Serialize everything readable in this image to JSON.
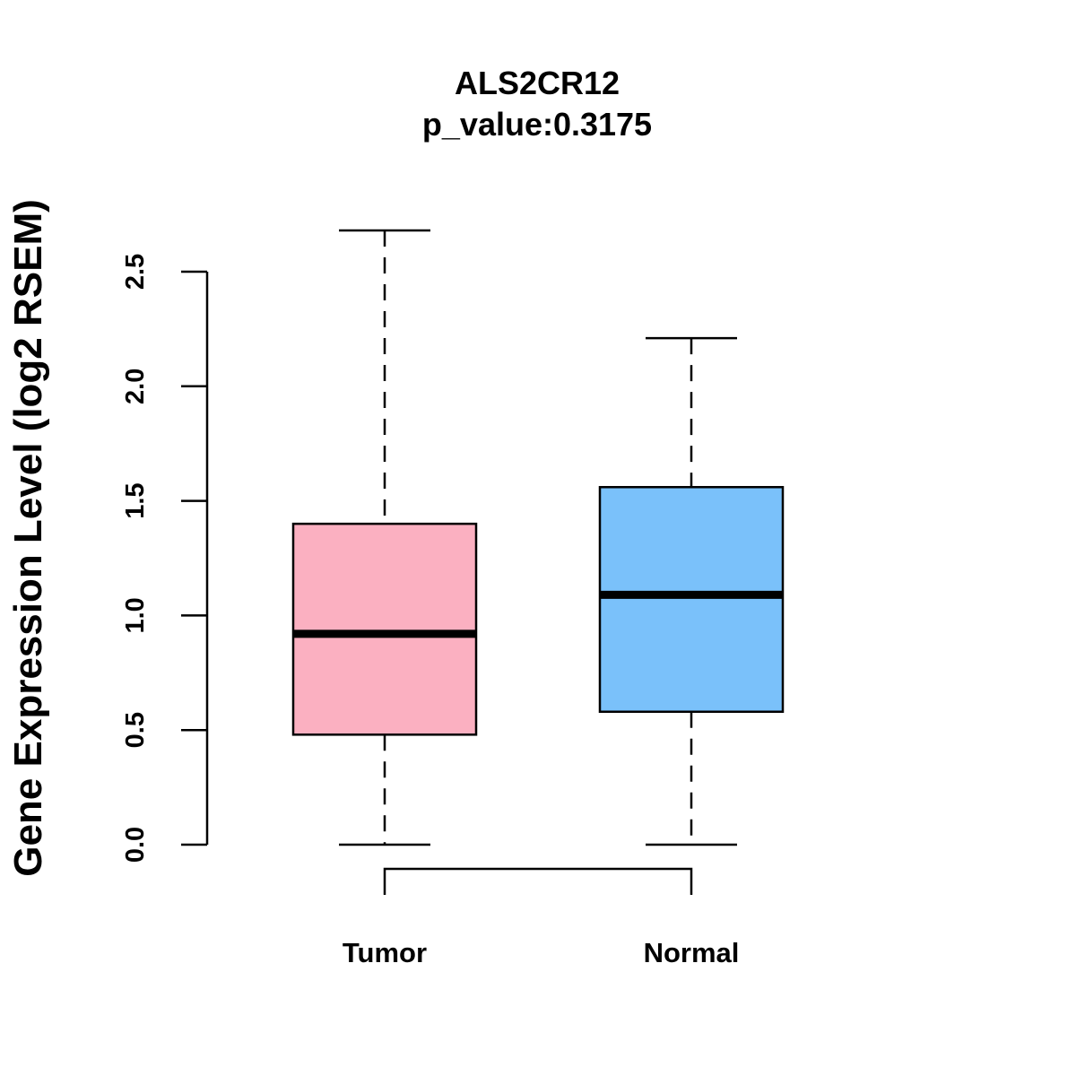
{
  "chart_data": {
    "type": "box",
    "title": "ALS2CR12",
    "subtitle": "p_value:0.3175",
    "xlabel": "",
    "ylabel": "Gene Expression Level (log2 RSEM)",
    "ylim": [
      0,
      2.5
    ],
    "yticks": [
      "0.0",
      "0.5",
      "1.0",
      "1.5",
      "2.0",
      "2.5"
    ],
    "categories": [
      "Tumor",
      "Normal"
    ],
    "series": [
      {
        "name": "Tumor",
        "color": "#FBB0C1",
        "min": 0.0,
        "q1": 0.48,
        "median": 0.92,
        "q3": 1.4,
        "max": 2.68
      },
      {
        "name": "Normal",
        "color": "#7AC1FA",
        "min": 0.0,
        "q1": 0.58,
        "median": 1.09,
        "q3": 1.56,
        "max": 2.21
      }
    ],
    "comparison_bracket": {
      "from": "Tumor",
      "to": "Normal"
    }
  }
}
